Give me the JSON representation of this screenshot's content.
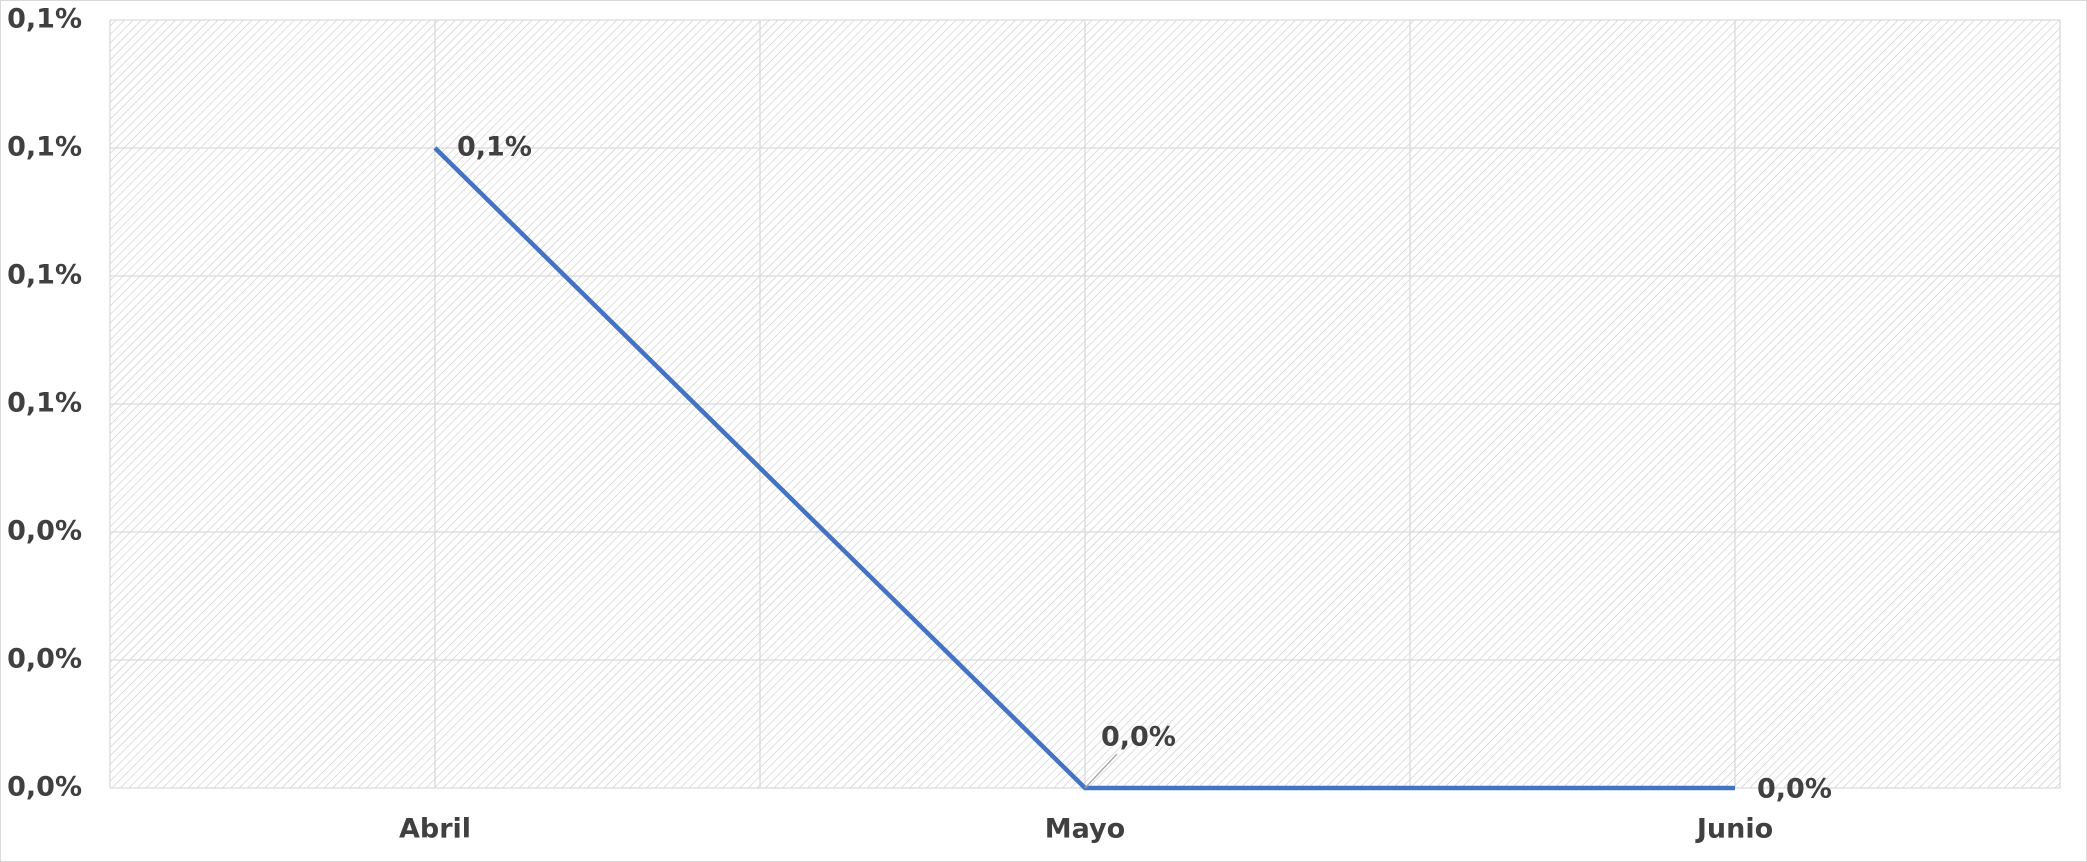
{
  "chart_data": {
    "type": "line",
    "categories": [
      "Abril",
      "Mayo",
      "Junio"
    ],
    "series": [
      {
        "color": "#4472c4",
        "values": [
          0.1,
          0,
          0
        ],
        "value_labels": [
          "0,1%",
          "0,0%",
          "0,0%"
        ]
      }
    ],
    "ylim": [
      0,
      0.12
    ],
    "yticks": [
      {
        "value": 0,
        "label": "0,0%"
      },
      {
        "value": 0.02,
        "label": "0,0%"
      },
      {
        "value": 0.04,
        "label": "0,0%"
      },
      {
        "value": 0.06,
        "label": "0,1%"
      },
      {
        "value": 0.08,
        "label": "0,1%"
      },
      {
        "value": 0.1,
        "label": "0,1%"
      },
      {
        "value": 0.12,
        "label": "0,1%"
      }
    ],
    "grid": true
  }
}
